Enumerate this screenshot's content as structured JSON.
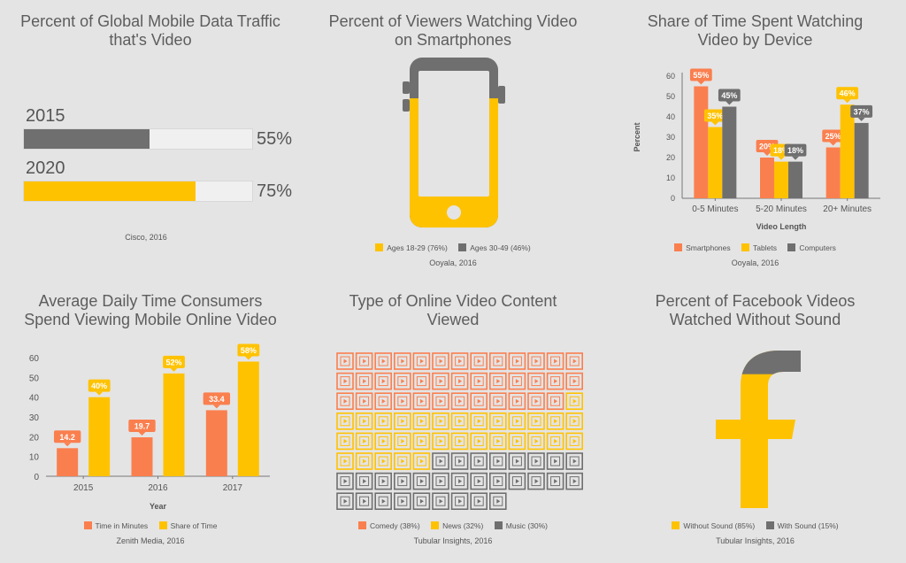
{
  "colors": {
    "orange": "#fa7f4f",
    "yellow": "#ffc200",
    "gray": "#6f6f6f",
    "grid": "#cfcfcf",
    "track": "#f0f0f0"
  },
  "panel1": {
    "title": "Percent of Global Mobile Data Traffic\nthat's Video",
    "rows": [
      {
        "year": "2015",
        "value_label": "55%"
      },
      {
        "year": "2020",
        "value_label": "75%"
      }
    ],
    "source": "Cisco, 2016"
  },
  "panel2": {
    "title": "Percent of Viewers Watching Video\non Smartphones",
    "legend": [
      {
        "label": "Ages 18-29",
        "value": "(76%)",
        "color": "#ffc200"
      },
      {
        "label": "Ages 30-49",
        "value": "(46%)",
        "color": "#6f6f6f"
      }
    ],
    "source": "Ooyala, 2016"
  },
  "panel3": {
    "title": "Share of Time Spent Watching\nVideo by Device",
    "ylabel": "Percent",
    "xlabel": "Video Length",
    "legend": [
      "Smartphones",
      "Tablets",
      "Computers"
    ],
    "source": "Ooyala, 2016"
  },
  "panel4": {
    "title": "Average Daily Time Consumers\nSpend Viewing Mobile Online Video",
    "xlabel": "Year",
    "legend": [
      "Time in Minutes",
      "Share of Time"
    ],
    "source": "Zenith Media, 2016"
  },
  "panel5": {
    "title": "Type of Online Video Content\nViewed",
    "legend": [
      {
        "label": "Comedy",
        "value": "(38%)"
      },
      {
        "label": "News",
        "value": "(32%)"
      },
      {
        "label": "Music",
        "value": "(30%)"
      }
    ],
    "source": "Tubular Insights, 2016"
  },
  "panel6": {
    "title": "Percent of Facebook Videos\nWatched Without Sound",
    "legend": [
      {
        "label": "Without Sound",
        "value": "(85%)"
      },
      {
        "label": "With Sound",
        "value": "(15%)"
      }
    ],
    "source": "Tubular Insights, 2016"
  },
  "chart_data": [
    {
      "type": "bar",
      "title": "Percent of Global Mobile Data Traffic that's Video",
      "categories": [
        "2015",
        "2020"
      ],
      "values": [
        55,
        75
      ],
      "value_labels": [
        "55%",
        "75%"
      ],
      "ylim": [
        0,
        100
      ],
      "colors": [
        "#6f6f6f",
        "#ffc200"
      ]
    },
    {
      "type": "pie",
      "title": "Percent of Viewers Watching Video on Smartphones",
      "series": [
        {
          "name": "Ages 18-29",
          "values": [
            76
          ]
        },
        {
          "name": "Ages 30-49",
          "values": [
            46
          ]
        }
      ]
    },
    {
      "type": "bar",
      "title": "Share of Time Spent Watching Video by Device",
      "xlabel": "Video Length",
      "ylabel": "Percent",
      "categories": [
        "0-5 Minutes",
        "5-20 Minutes",
        "20+ Minutes"
      ],
      "series": [
        {
          "name": "Smartphones",
          "values": [
            55,
            20,
            25
          ],
          "labels": [
            "55%",
            "20%",
            "25%"
          ]
        },
        {
          "name": "Tablets",
          "values": [
            35,
            18,
            46
          ],
          "labels": [
            "35%",
            "18%",
            "46%"
          ]
        },
        {
          "name": "Computers",
          "values": [
            45,
            18,
            37
          ],
          "labels": [
            "45%",
            "18%",
            "37%"
          ]
        }
      ],
      "ylim": [
        0,
        60
      ],
      "yticks": [
        "0",
        "10",
        "20",
        "30",
        "40",
        "50",
        "60"
      ],
      "grid": false,
      "legend": "bottom"
    },
    {
      "type": "bar",
      "title": "Average Daily Time Consumers Spend Viewing Mobile Online Video",
      "xlabel": "Year",
      "categories": [
        "2015",
        "2016",
        "2017"
      ],
      "series": [
        {
          "name": "Time in Minutes",
          "values": [
            14.2,
            19.7,
            33.4
          ],
          "labels": [
            "14.2",
            "19.7",
            "33.4"
          ]
        },
        {
          "name": "Share of Time",
          "values": [
            40,
            52,
            58
          ],
          "labels": [
            "40%",
            "52%",
            "58%"
          ]
        }
      ],
      "ylim": [
        0,
        60
      ],
      "yticks": [
        "0",
        "10",
        "20",
        "30",
        "40",
        "50",
        "60"
      ],
      "grid": false,
      "legend": "bottom"
    },
    {
      "type": "pie",
      "title": "Type of Online Video Content Viewed",
      "series": [
        {
          "name": "Comedy",
          "values": [
            38
          ]
        },
        {
          "name": "News",
          "values": [
            32
          ]
        },
        {
          "name": "Music",
          "values": [
            30
          ]
        }
      ]
    },
    {
      "type": "pie",
      "title": "Percent of Facebook Videos Watched Without Sound",
      "series": [
        {
          "name": "Without Sound",
          "values": [
            85
          ]
        },
        {
          "name": "With Sound",
          "values": [
            15
          ]
        }
      ]
    }
  ]
}
